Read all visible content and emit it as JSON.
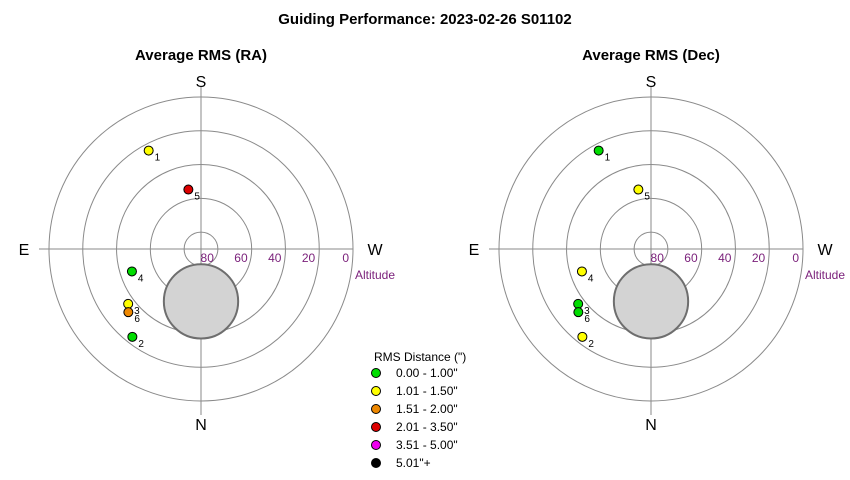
{
  "title": "Guiding Performance: 2023-02-26 S01102",
  "legend": {
    "title": "RMS Distance (\")",
    "items": [
      {
        "label": "0.00 - 1.00\"",
        "color": "#00dd00"
      },
      {
        "label": "1.01 - 1.50\"",
        "color": "#ffff00"
      },
      {
        "label": "1.51 - 2.00\"",
        "color": "#ee8800"
      },
      {
        "label": "2.01 - 3.50\"",
        "color": "#dd0000"
      },
      {
        "label": "3.51 - 5.00\"",
        "color": "#ee00ee"
      },
      {
        "label": "5.01\"+",
        "color": "#000000"
      }
    ]
  },
  "compass": {
    "top": "S",
    "bottom": "N",
    "left": "E",
    "right": "W"
  },
  "altitude_label": "Altitude",
  "altitude_ticks": [
    "80",
    "60",
    "40",
    "20",
    "0"
  ],
  "chart_data": [
    {
      "type": "scatter",
      "title": "Average RMS (RA)",
      "coordinate_system": "polar (azimuth, altitude)",
      "radial_axis": {
        "label": "Altitude",
        "range": [
          90,
          0
        ],
        "ticks": [
          80,
          60,
          40,
          20,
          0
        ]
      },
      "shaded_region": {
        "azimuth": 0,
        "altitude": 59,
        "radius_deg": 22
      },
      "points": [
        {
          "label": "1",
          "azimuth": 208,
          "altitude": 24,
          "rms_bin": "1.01 - 1.50\"",
          "color": "#ffff00"
        },
        {
          "label": "2",
          "azimuth": 322,
          "altitude": 24,
          "rms_bin": "0.00 - 1.00\"",
          "color": "#00dd00"
        },
        {
          "label": "4",
          "azimuth": 288,
          "altitude": 47,
          "rms_bin": "0.00 - 1.00\"",
          "color": "#00dd00"
        },
        {
          "label": "5",
          "azimuth": 192,
          "altitude": 54,
          "rms_bin": "2.01 - 3.50\"",
          "color": "#dd0000"
        },
        {
          "label": "3",
          "azimuth": 307,
          "altitude": 36,
          "rms_bin": "1.01 - 1.50\"",
          "color": "#ffff00"
        },
        {
          "label": "6",
          "azimuth": 311,
          "altitude": 33,
          "rms_bin": "1.51 - 2.00\"",
          "color": "#ee8800"
        }
      ]
    },
    {
      "type": "scatter",
      "title": "Average RMS (Dec)",
      "coordinate_system": "polar (azimuth, altitude)",
      "radial_axis": {
        "label": "Altitude",
        "range": [
          90,
          0
        ],
        "ticks": [
          80,
          60,
          40,
          20,
          0
        ]
      },
      "shaded_region": {
        "azimuth": 0,
        "altitude": 59,
        "radius_deg": 22
      },
      "points": [
        {
          "label": "1",
          "azimuth": 208,
          "altitude": 24,
          "rms_bin": "0.00 - 1.00\"",
          "color": "#00dd00"
        },
        {
          "label": "2",
          "azimuth": 322,
          "altitude": 24,
          "rms_bin": "1.01 - 1.50\"",
          "color": "#ffff00"
        },
        {
          "label": "4",
          "azimuth": 288,
          "altitude": 47,
          "rms_bin": "1.01 - 1.50\"",
          "color": "#ffff00"
        },
        {
          "label": "5",
          "azimuth": 192,
          "altitude": 54,
          "rms_bin": "1.01 - 1.50\"",
          "color": "#ffff00"
        },
        {
          "label": "3",
          "azimuth": 307,
          "altitude": 36,
          "rms_bin": "0.00 - 1.00\"",
          "color": "#00dd00"
        },
        {
          "label": "6",
          "azimuth": 311,
          "altitude": 33,
          "rms_bin": "0.00 - 1.00\"",
          "color": "#00dd00"
        }
      ]
    }
  ]
}
